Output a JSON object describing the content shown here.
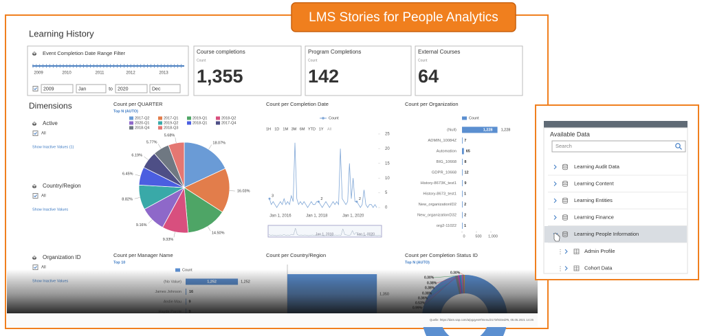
{
  "banner": "LMS Stories for People Analytics",
  "page_title": "Learning History",
  "filter": {
    "title": "Event Completion Date Range Filter",
    "years": [
      "2009",
      "2010",
      "2011",
      "2012",
      "2013"
    ],
    "from_year": "2009",
    "from_month": "Jan",
    "to": "to",
    "to_year": "2020",
    "to_month": "Dec"
  },
  "kpis": [
    {
      "title": "Course completions",
      "unit": "Count",
      "value": "1,355"
    },
    {
      "title": "Program Completions",
      "unit": "Count",
      "value": "142"
    },
    {
      "title": "External  Courses",
      "unit": "Count",
      "value": "64"
    }
  ],
  "dimensions": {
    "title": "Dimensions",
    "items": [
      {
        "name": "Active",
        "option": "All",
        "link": "Show Inactive Values (1)"
      },
      {
        "name": "Country/Region",
        "option": "All",
        "link": "Show Inactive Values"
      },
      {
        "name": "Organization ID",
        "option": "All",
        "link": "Show Inactive Values"
      }
    ]
  },
  "pie": {
    "type": "pie",
    "title": "Count per QUARTER",
    "subtitle": "Top N (AUTO)",
    "categories": [
      "2017-Q2",
      "2017-Q1",
      "2019-Q1",
      "2018-Q2",
      "2020-Q1",
      "2019-Q2",
      "2018-Q1",
      "2017-Q4",
      "2018-Q4",
      "2018-Q3"
    ],
    "colors": [
      "#6a9bd6",
      "#e27d4b",
      "#4ea566",
      "#d84f7e",
      "#8e68c9",
      "#39a9a8",
      "#4b5ee0",
      "#4e4f86",
      "#6f7882",
      "#e47772"
    ],
    "values": [
      18.07,
      16.03,
      14.5,
      9.33,
      9.16,
      8.82,
      6.45,
      6.19,
      5.77,
      5.68
    ],
    "value_labels": [
      "18.07%",
      "16.03%",
      "14.50%",
      "9.33%",
      "9.16%",
      "8.82%",
      "6.45%",
      "6.19%",
      "5.77%",
      "5.68%"
    ]
  },
  "line": {
    "type": "line",
    "title": "Count per Completion Date",
    "legend": "Count",
    "color": "#7fa6d6",
    "buttons": [
      "1H",
      "1D",
      "1M",
      "3M",
      "6M",
      "YTD",
      "1Y",
      "All"
    ],
    "ylim": [
      0,
      25
    ],
    "yticks": [
      0,
      5,
      10,
      15,
      20,
      25
    ],
    "categories": [
      null,
      null,
      null,
      null,
      null,
      null,
      "Jan 1, 2016",
      null,
      null,
      null,
      null,
      null,
      null,
      null,
      null,
      null,
      null,
      null,
      null,
      null,
      null,
      null,
      null,
      null,
      null,
      null,
      "Jan 1, 2018",
      null,
      null,
      null,
      null,
      null,
      null,
      null,
      null,
      null,
      null,
      null,
      null,
      null,
      null,
      null,
      null,
      null,
      null,
      null,
      "Jan 1, 2020",
      null,
      null,
      null,
      null,
      null,
      null,
      null,
      null,
      null,
      null,
      null,
      null,
      null
    ],
    "values": [
      3,
      1,
      2,
      1,
      0,
      1,
      2,
      1,
      3,
      1,
      2,
      1,
      4,
      2,
      22,
      3,
      1,
      2,
      1,
      2,
      1,
      0,
      1,
      2,
      1,
      1,
      2,
      2,
      1,
      0,
      1,
      2,
      1,
      0,
      1,
      2,
      1,
      2,
      1,
      20,
      3,
      2,
      1,
      2,
      15,
      3,
      10,
      2,
      2,
      1,
      0,
      1,
      6,
      1,
      0,
      1,
      1,
      0,
      1,
      0
    ],
    "value_labels": [
      "3",
      null,
      null,
      null,
      null,
      null,
      null,
      null,
      null,
      null,
      null,
      null,
      null,
      null,
      null,
      null,
      null,
      null,
      null,
      null,
      null,
      null,
      null,
      null,
      null,
      null,
      null,
      "2",
      null,
      null,
      null,
      null,
      null,
      null,
      null,
      null,
      null,
      null,
      null,
      null,
      null,
      null,
      null,
      null,
      null,
      null,
      null,
      null,
      "2",
      null,
      null,
      null,
      null,
      null,
      null,
      null,
      null,
      null,
      null,
      null
    ],
    "navigator_labels": [
      "Jan 1, 2018",
      "Jan 1, 2020"
    ]
  },
  "org": {
    "type": "bar",
    "title": "Count per Organization",
    "legend": "Count",
    "color": "#5b8fd0",
    "categories": [
      "(Null)",
      "ADMIN_10084Z",
      "Automation",
      "BIG_10668",
      "GDPR_10668",
      "History-8673K_test1",
      "History-8673_test1",
      "New_organizationID2",
      "New_organizationD32",
      "org2-11022"
    ],
    "values": [
      1228,
      7,
      65,
      8,
      12,
      9,
      1,
      2,
      2,
      1
    ],
    "value_labels": [
      "1,228",
      "7",
      "65",
      "8",
      "12",
      "9",
      "1",
      "2",
      "2",
      "1"
    ],
    "xlim": [
      0,
      1400
    ],
    "xticks": [
      0,
      500,
      {
        "value": 1000,
        "label": "1,000"
      }
    ]
  },
  "manager": {
    "type": "bar",
    "title": "Count per Manager Name",
    "subtitle": "Top 10",
    "legend": "Count",
    "color": "#5b8fd0",
    "categories": [
      "(No Value)",
      "James Johnson",
      "Andie Mau",
      "Hayde Parole"
    ],
    "values": [
      1252,
      16,
      9,
      9
    ],
    "value_labels": [
      "1,252",
      "16",
      "9",
      "9"
    ],
    "xlim": [
      0,
      1300
    ]
  },
  "country": {
    "type": "bar",
    "title": "Count per Country/Region",
    "color": "#5b8fd0",
    "values": [
      1350
    ],
    "value_labels": [
      "1,350"
    ],
    "xlim": [
      0,
      1400
    ]
  },
  "status": {
    "type": "donut",
    "title": "Count per Completion Status ID",
    "subtitle": "Top N (AUTO)",
    "values": [
      0.3,
      0.3,
      0.38,
      0.38,
      0.38,
      0.36,
      0.53,
      0.99
    ],
    "value_labels": [
      "0.30%",
      "0.30%",
      "0.38%",
      "0.38%",
      "0.38%",
      "0.36%",
      "0.53%",
      "0.99%"
    ],
    "colors": [
      "#e27d4b",
      "#4ea566",
      "#d84f7e",
      "#8e68c9",
      "#39a9a8",
      "#4b5ee0",
      "#c2479a",
      "#6f7882"
    ]
  },
  "source": "Quelle: https://dam.sap.com/a/pgqyes#/menu/2173/933ed#5, 05.05.2021 14:26",
  "panel": {
    "title": "Available Data",
    "search": "Search",
    "items": [
      "Learning Audit Data",
      "Learning Content",
      "Learning Entities",
      "Learning Finance",
      "Learning People Information"
    ],
    "sub_items": [
      "Admin Profile",
      "Cohort Data"
    ]
  }
}
